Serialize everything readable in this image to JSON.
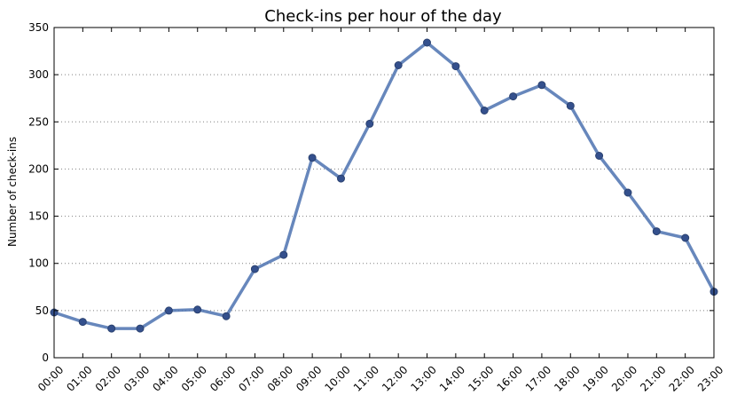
{
  "chart_data": {
    "type": "line",
    "title": "Check-ins per hour of the day",
    "xlabel": "",
    "ylabel": "Number of check-ins",
    "categories": [
      "00:00",
      "01:00",
      "02:00",
      "03:00",
      "04:00",
      "05:00",
      "06:00",
      "07:00",
      "08:00",
      "09:00",
      "10:00",
      "11:00",
      "12:00",
      "13:00",
      "14:00",
      "15:00",
      "16:00",
      "17:00",
      "18:00",
      "19:00",
      "20:00",
      "21:00",
      "22:00",
      "23:00"
    ],
    "series": [
      {
        "values": [
          48,
          38,
          31,
          31,
          50,
          51,
          44,
          94,
          109,
          212,
          190,
          248,
          310,
          334,
          309,
          262,
          277,
          289,
          267,
          214,
          175,
          134,
          127,
          70
        ]
      }
    ],
    "ylim": [
      0,
      350
    ],
    "yticks": [
      0,
      50,
      100,
      150,
      200,
      250,
      300,
      350
    ],
    "grid": "horizontal-dotted",
    "colors": {
      "line": "#4c72b0",
      "marker_fill": "#34508d",
      "marker_edge": "#2b4270"
    }
  }
}
